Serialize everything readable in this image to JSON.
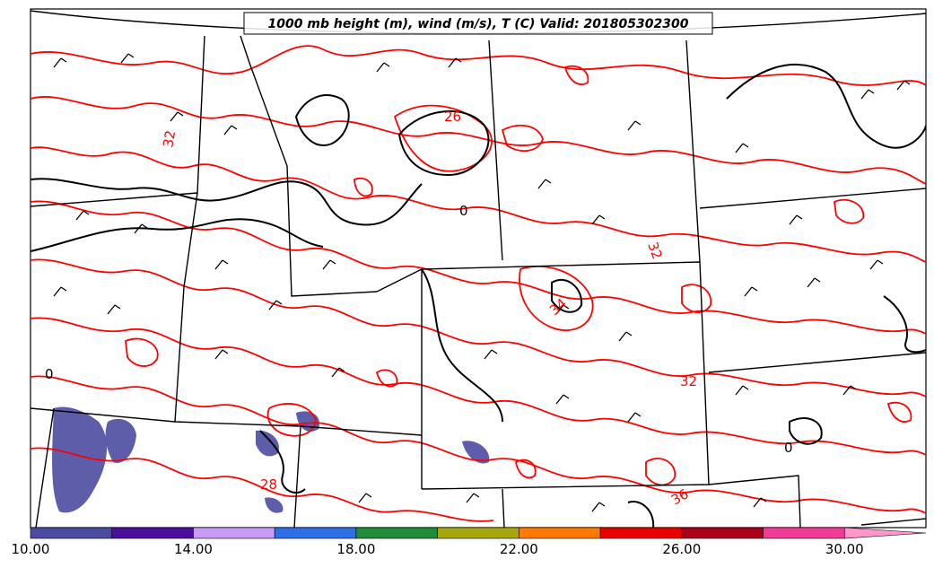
{
  "title": "1000 mb height (m), wind (m/s), T (C) Valid: 201805302300",
  "colorbar": {
    "min": 10,
    "max": 32,
    "ticks": [
      "10.00",
      "14.00",
      "18.00",
      "22.00",
      "26.00",
      "30.00"
    ],
    "colors": [
      "#4b4ba0",
      "#4b0f9e",
      "#c79af5",
      "#2d6fe6",
      "#1f8c3a",
      "#a6a60f",
      "#ff7a00",
      "#e60000",
      "#a8001d",
      "#f03c96",
      "#ff96cc"
    ]
  },
  "contour_labels": [
    {
      "text": "32",
      "kind": "temp"
    },
    {
      "text": "26",
      "kind": "temp"
    },
    {
      "text": "32",
      "kind": "temp"
    },
    {
      "text": "34",
      "kind": "temp"
    },
    {
      "text": "32",
      "kind": "temp"
    },
    {
      "text": "36",
      "kind": "temp"
    },
    {
      "text": "28",
      "kind": "temp"
    },
    {
      "text": "0",
      "kind": "height"
    },
    {
      "text": "0",
      "kind": "height"
    },
    {
      "text": "0",
      "kind": "height"
    }
  ]
}
